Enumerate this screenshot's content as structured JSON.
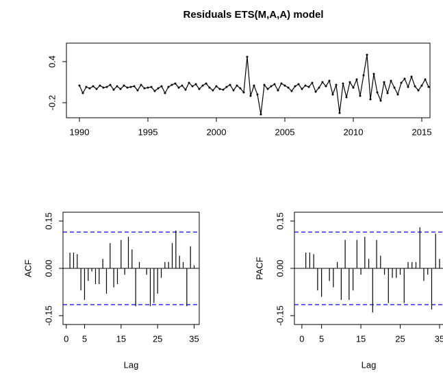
{
  "chart_data": [
    {
      "type": "line",
      "title": "Residuals ETS(M,A,A) model",
      "color": "#000000",
      "x": [
        1990,
        1990.25,
        1990.5,
        1990.75,
        1991,
        1991.25,
        1991.5,
        1991.75,
        1992,
        1992.25,
        1992.5,
        1992.75,
        1993,
        1993.25,
        1993.5,
        1993.75,
        1994,
        1994.25,
        1994.5,
        1994.75,
        1995,
        1995.25,
        1995.5,
        1995.75,
        1996,
        1996.25,
        1996.5,
        1996.75,
        1997,
        1997.25,
        1997.5,
        1997.75,
        1998,
        1998.25,
        1998.5,
        1998.75,
        1999,
        1999.25,
        1999.5,
        1999.75,
        2000,
        2000.25,
        2000.5,
        2000.75,
        2001,
        2001.25,
        2001.5,
        2001.75,
        2002,
        2002.25,
        2002.5,
        2002.75,
        2003,
        2003.25,
        2003.5,
        2003.75,
        2004,
        2004.25,
        2004.5,
        2004.75,
        2005,
        2005.25,
        2005.5,
        2005.75,
        2006,
        2006.25,
        2006.5,
        2006.75,
        2007,
        2007.25,
        2007.5,
        2007.75,
        2008,
        2008.25,
        2008.5,
        2008.75,
        2009,
        2009.25,
        2009.5,
        2009.75,
        2010,
        2010.25,
        2010.5,
        2010.75,
        2011,
        2011.25,
        2011.5,
        2011.75,
        2012,
        2012.25,
        2012.5,
        2012.75,
        2013,
        2013.25,
        2013.5,
        2013.75,
        2014,
        2014.25,
        2014.5,
        2014.75,
        2015,
        2015.25,
        2015.5
      ],
      "values": [
        0.05,
        -0.06,
        0.03,
        0.01,
        0.04,
        0.0,
        0.05,
        0.02,
        0.03,
        0.06,
        -0.01,
        0.04,
        0.0,
        0.05,
        0.02,
        0.03,
        0.04,
        -0.02,
        0.06,
        0.01,
        0.02,
        0.03,
        -0.03,
        0.01,
        0.04,
        -0.06,
        0.03,
        0.06,
        0.08,
        0.02,
        0.05,
        -0.01,
        0.09,
        0.04,
        0.07,
        0.0,
        0.05,
        0.08,
        0.02,
        -0.02,
        0.04,
        0.0,
        -0.01,
        0.03,
        0.06,
        -0.02,
        0.05,
        0.01,
        -0.05,
        0.47,
        -0.1,
        0.05,
        -0.08,
        -0.37,
        0.06,
        0.0,
        0.04,
        0.07,
        -0.02,
        0.08,
        0.05,
        0.02,
        -0.03,
        0.04,
        0.07,
        0.0,
        0.05,
        0.03,
        0.09,
        -0.04,
        0.02,
        0.1,
        0.04,
        0.12,
        -0.08,
        0.06,
        -0.35,
        0.08,
        -0.12,
        0.1,
        0.02,
        0.14,
        -0.1,
        0.2,
        0.5,
        -0.15,
        0.22,
        -0.05,
        -0.17,
        0.1,
        -0.06,
        0.12,
        0.02,
        -0.08,
        0.09,
        0.15,
        0.03,
        0.18,
        0.04,
        -0.02,
        0.05,
        0.14,
        0.03
      ],
      "xlim": [
        1989.05,
        2015.6
      ],
      "xticks": [
        1990,
        1995,
        2000,
        2005,
        2010,
        2015
      ],
      "ylim": [
        -0.42,
        0.67
      ],
      "yticks": [
        -0.2,
        0.4
      ]
    },
    {
      "type": "bar",
      "ylabel": "ACF",
      "xlabel": "Lag",
      "color": "#000000",
      "ci": [
        -0.115,
        0.115
      ],
      "ci_color": "#0000ff",
      "x": [
        1,
        2,
        3,
        4,
        5,
        6,
        7,
        8,
        9,
        10,
        11,
        12,
        13,
        14,
        15,
        16,
        17,
        18,
        19,
        20,
        21,
        22,
        23,
        24,
        25,
        26,
        27,
        28,
        29,
        30,
        31,
        32,
        33,
        34,
        35
      ],
      "values": [
        0.05,
        0.05,
        0.045,
        -0.07,
        -0.1,
        -0.04,
        -0.01,
        -0.05,
        -0.05,
        0.03,
        -0.08,
        0.08,
        -0.06,
        -0.05,
        0.09,
        -0.02,
        0.1,
        0.06,
        -0.12,
        0.02,
        0.0,
        -0.02,
        -0.12,
        -0.11,
        -0.08,
        -0.03,
        0.02,
        0.02,
        0.08,
        0.12,
        0.04,
        0.02,
        -0.12,
        0.07,
        0.01
      ],
      "xlim": [
        -0.9,
        36.4
      ],
      "xticks": [
        0,
        5,
        15,
        25,
        35
      ],
      "ylim": [
        -0.178,
        0.178
      ],
      "yticks": [
        {
          "value": -0.15,
          "label": "-0.15"
        },
        {
          "value": 0,
          "label": "0.00"
        },
        0.15
      ]
    },
    {
      "type": "bar",
      "ylabel": "PACF",
      "xlabel": "Lag",
      "color": "#000000",
      "ci": [
        -0.115,
        0.115
      ],
      "ci_color": "#0000ff",
      "x": [
        1,
        2,
        3,
        4,
        5,
        6,
        7,
        8,
        9,
        10,
        11,
        12,
        13,
        14,
        15,
        16,
        17,
        18,
        19,
        20,
        21,
        22,
        23,
        24,
        25,
        26,
        27,
        28,
        29,
        30,
        31,
        32,
        33,
        34,
        35
      ],
      "values": [
        0.05,
        0.05,
        0.045,
        -0.07,
        -0.09,
        0.0,
        -0.04,
        -0.06,
        0.02,
        -0.1,
        0.09,
        -0.1,
        -0.07,
        0.09,
        -0.02,
        0.1,
        0.03,
        -0.14,
        0.09,
        0.04,
        -0.02,
        -0.11,
        -0.03,
        -0.03,
        -0.02,
        -0.11,
        0.02,
        0.02,
        0.02,
        0.13,
        -0.04,
        -0.02,
        -0.13,
        0.11,
        0.03
      ],
      "xlim": [
        -1.9,
        36.4
      ],
      "xticks": [
        0,
        5,
        15,
        25,
        35
      ],
      "ylim": [
        -0.178,
        0.178
      ],
      "yticks": [
        {
          "value": -0.15,
          "label": "-0.15"
        },
        {
          "value": 0,
          "label": "0.00"
        },
        0.15
      ]
    }
  ]
}
